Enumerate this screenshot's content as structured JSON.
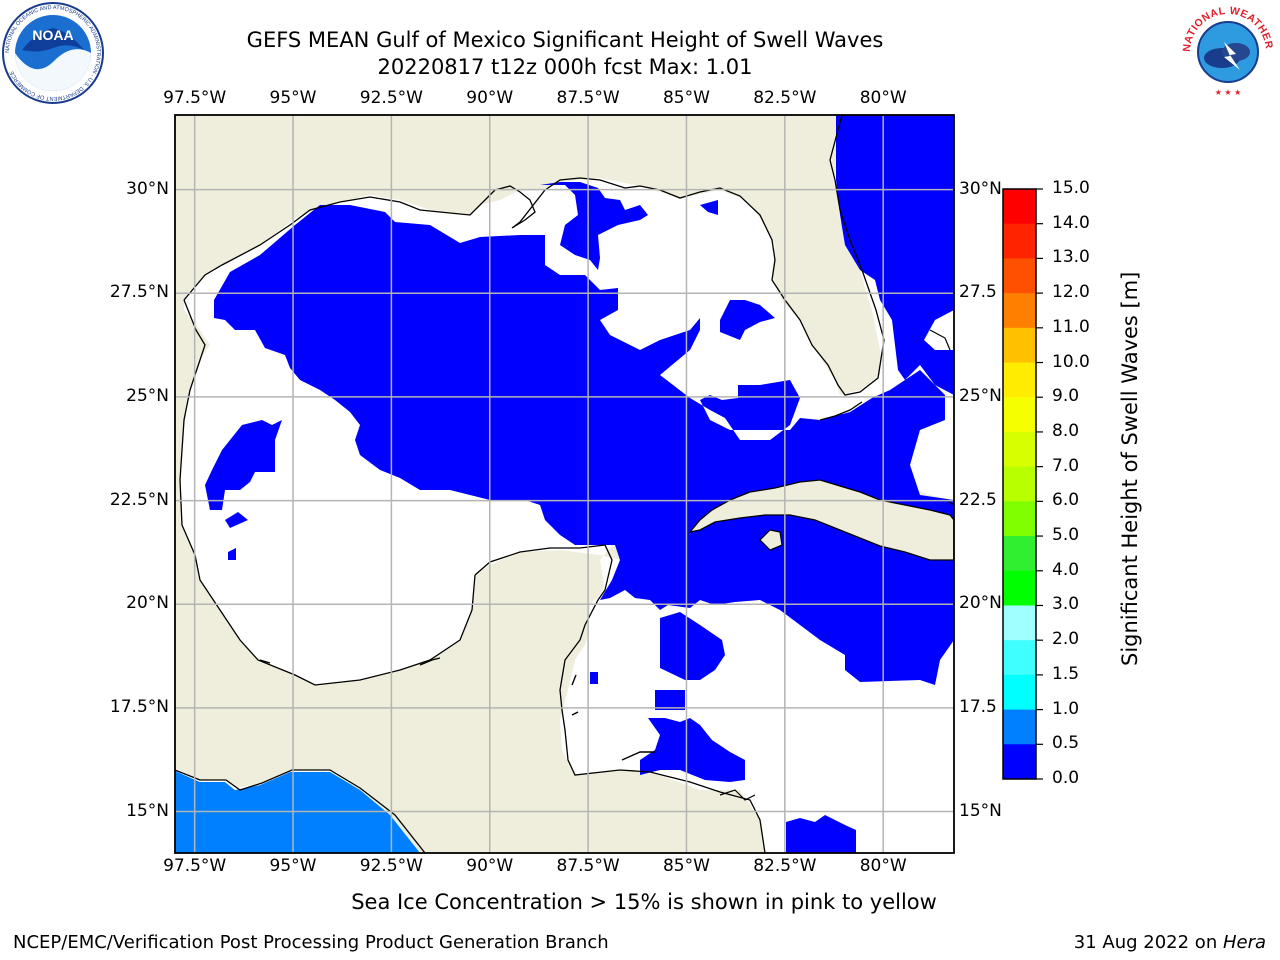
{
  "header": {
    "title_line1": "GEFS MEAN Gulf of Mexico Significant Height of Swell Waves",
    "title_line2": "20220817 t12z 000h fcst   Max: 1.01"
  },
  "map": {
    "lon_labels": [
      "97.5°W",
      "95°W",
      "92.5°W",
      "90°W",
      "87.5°W",
      "85°W",
      "82.5°W",
      "80°W"
    ],
    "lon_values": [
      -97.5,
      -95,
      -92.5,
      -90,
      -87.5,
      -85,
      -82.5,
      -80
    ],
    "lat_labels_left": [
      "30°N",
      "27.5°N",
      "25°N",
      "22.5°N",
      "20°N",
      "17.5°N",
      "15°N"
    ],
    "lat_labels_right": [
      "30°N",
      "27.5",
      "25°N",
      "22.5",
      "20°N",
      "17.5",
      "15°N"
    ],
    "lat_values": [
      30,
      27.5,
      25,
      22.5,
      20,
      17.5,
      15
    ],
    "lon_range": [
      -98,
      -78.2
    ],
    "lat_range": [
      14,
      31.8
    ],
    "colors": {
      "land": "#efeedc",
      "water_no_data": "#ffffff",
      "swell_0_0_5": "#0000ff",
      "swell_0_5_1_0": "#0080ff",
      "grid": "#b4b4b4",
      "coast": "#000000"
    }
  },
  "colorbar": {
    "label": "Significant Height of Swell Waves [m]",
    "ticks": [
      "15.0",
      "14.0",
      "13.0",
      "12.0",
      "11.0",
      "10.0",
      "9.0",
      "8.0",
      "7.0",
      "6.0",
      "5.0",
      "4.0",
      "3.0",
      "2.0",
      "1.5",
      "1.0",
      "0.5",
      "0.0"
    ],
    "colors": [
      "#ff0000",
      "#ff2400",
      "#ff5000",
      "#ff8000",
      "#ff9f00",
      "#ffc000",
      "#ffec00",
      "#f5ff00",
      "#d8ff00",
      "#b8ff00",
      "#80ff00",
      "#30ee30",
      "#00ff00",
      "#50ff90",
      "#a0ffff",
      "#40ffff",
      "#00ffff",
      "#0080ff",
      "#0000ff"
    ]
  },
  "note": "Sea Ice Concentration > 15% is shown in pink to yellow",
  "footer": {
    "left": "NCEP/EMC/Verification Post Processing Product Generation Branch",
    "right_date": "31 Aug 2022 on ",
    "right_host": "Hera"
  },
  "logos": {
    "noaa_text": "NOAA",
    "noaa_ring": "NATIONAL OCEANIC AND ATMOSPHERIC ADMINISTRATION · U.S. DEPARTMENT OF COMMERCE",
    "nws_ring": "NATIONAL WEATHER SERVICE"
  }
}
